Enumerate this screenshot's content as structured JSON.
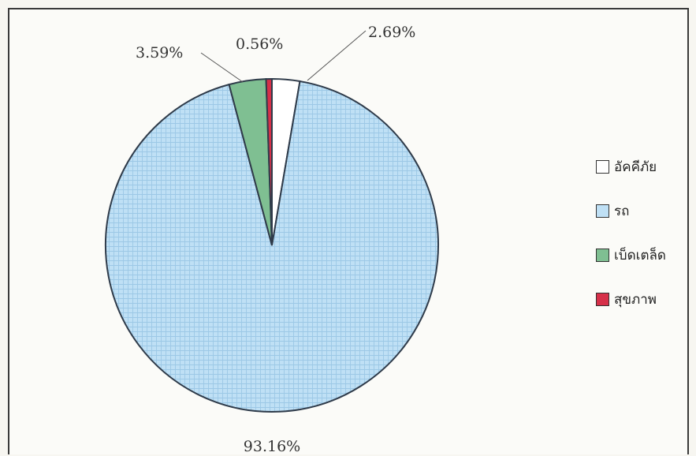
{
  "chart_data": {
    "type": "pie",
    "title": "",
    "start_angle_deg": 0,
    "direction": "clockwise",
    "slices": [
      {
        "label": "อัคคีภัย",
        "value": 2.69,
        "value_label": "2.69%",
        "color": "#ffffff"
      },
      {
        "label": "รถ",
        "value": 93.16,
        "value_label": "93.16%",
        "color": "#bfe0f5"
      },
      {
        "label": "เบ็ดเตล็ด",
        "value": 3.59,
        "value_label": "3.59%",
        "color": "#7fbf92"
      },
      {
        "label": "สุขภาพ",
        "value": 0.56,
        "value_label": "0.56%",
        "color": "#d63049"
      }
    ],
    "legend": {
      "placement": "right",
      "entries": [
        "อัคคีภัย",
        "รถ",
        "เบ็ดเตล็ด",
        "สุขภาพ"
      ]
    }
  }
}
